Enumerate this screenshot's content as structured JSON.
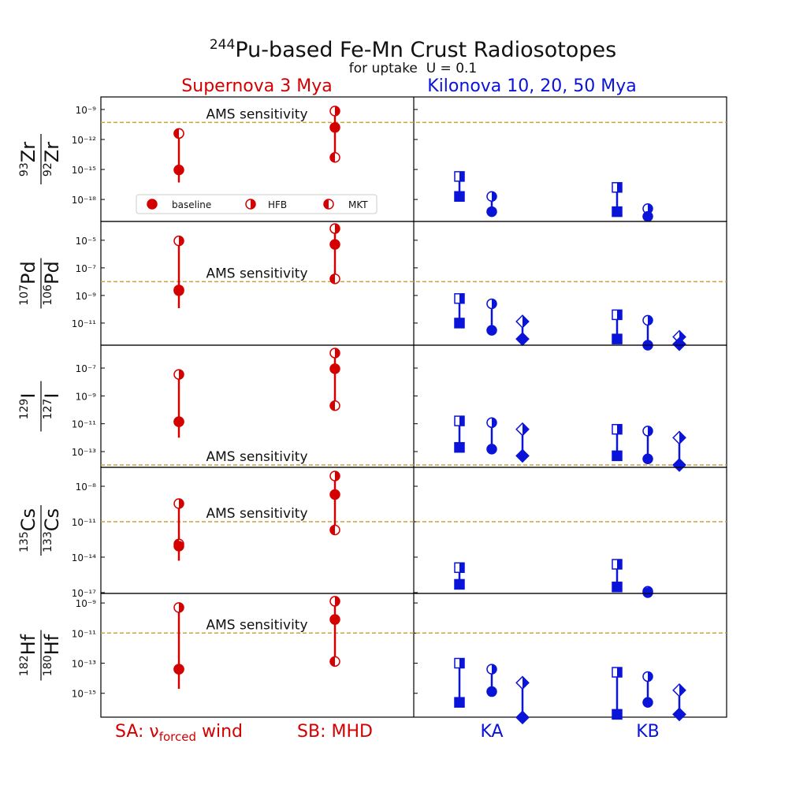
{
  "chart_data": {
    "type": "errorbar",
    "title_sup": "244",
    "title": "Pu-based Fe-Mn Crust Radiosotopes",
    "subtitle": "for uptake  U = 0.1",
    "left_title": "Supernova 3 Mya",
    "right_title": "Kilonova 10, 20, 50 Mya",
    "supernova_color": "#d40000",
    "kilonova_color": "#0a14d8",
    "ams_color": "#c8a046",
    "supernova_labels": [
      [
        "SA: ν",
        "forced",
        " wind"
      ],
      [
        "SB: MHD"
      ]
    ],
    "kilonova_categories": [
      "KA",
      "KB"
    ],
    "legend": [
      "baseline",
      "HFB",
      "MKT"
    ],
    "ams_label": "AMS sensitivity",
    "log_scale": true,
    "panels": [
      {
        "ylabel": [
          "93",
          "Zr",
          "92",
          "Zr"
        ],
        "ylim": [
          6.3e-21,
          1.8e-08
        ],
        "yticks": [
          {
            "value": 1e-09,
            "label": "10⁻⁹"
          },
          {
            "value": 1e-12,
            "label": "10⁻¹²"
          },
          {
            "value": 1e-15,
            "label": "10⁻¹⁵"
          },
          {
            "value": 1e-18,
            "label": "10⁻¹⁸"
          }
        ],
        "ams": 5e-11,
        "supernova": [
          {
            "baseline": 9e-16,
            "hfb": 4e-12,
            "mkt": 4e-12,
            "err": [
              5e-17,
              4e-12
            ]
          },
          {
            "baseline": 1.6e-11,
            "hfb": 7e-10,
            "mkt": 1.6e-14,
            "err": [
              1.6e-14,
              7e-10
            ]
          }
        ],
        "kilonova": [
          {
            "lo": [
              2e-18,
              6e-20,
              null
            ],
            "hi": [
              2e-16,
              2e-18,
              null
            ]
          },
          {
            "lo": [
              6e-20,
              2e-20,
              null
            ],
            "hi": [
              1.6e-17,
              1.2e-19,
              null
            ]
          }
        ]
      },
      {
        "ylabel": [
          "107",
          "Pd",
          "106",
          "Pd"
        ],
        "ylim": [
          2.5e-13,
          0.00023
        ],
        "yticks": [
          {
            "value": 1e-05,
            "label": "10⁻⁵"
          },
          {
            "value": 1e-07,
            "label": "10⁻⁷"
          },
          {
            "value": 1e-09,
            "label": "10⁻⁹"
          },
          {
            "value": 1e-11,
            "label": "10⁻¹¹"
          }
        ],
        "ams": 1e-08,
        "supernova": [
          {
            "baseline": 2.2e-09,
            "hfb": 9e-06,
            "mkt": 2.5e-09,
            "err": [
              1.2e-10,
              9e-06
            ]
          },
          {
            "baseline": 5e-06,
            "hfb": 7e-05,
            "mkt": 1.6e-08,
            "err": [
              1.6e-08,
              7e-05
            ]
          }
        ],
        "kilonova": [
          {
            "lo": [
              1e-11,
              3e-12,
              7e-13
            ],
            "hi": [
              6e-10,
              2.5e-10,
              1.3e-11
            ]
          },
          {
            "lo": [
              7e-13,
              2.5e-13,
              3e-13
            ],
            "hi": [
              4e-11,
              1.6e-11,
              1e-12
            ]
          }
        ]
      },
      {
        "ylabel": [
          "129",
          "I",
          "127",
          "I"
        ],
        "ylim": [
          7.4e-15,
          4.4e-06
        ],
        "yticks": [
          {
            "value": 1e-07,
            "label": "10⁻⁷"
          },
          {
            "value": 1e-09,
            "label": "10⁻⁹"
          },
          {
            "value": 1e-11,
            "label": "10⁻¹¹"
          },
          {
            "value": 1e-13,
            "label": "10⁻¹³"
          }
        ],
        "ams": 1.1e-14,
        "supernova": [
          {
            "baseline": 1.4e-11,
            "hfb": 3.5e-08,
            "mkt": 1.4e-11,
            "err": [
              1e-12,
              3.5e-08
            ]
          },
          {
            "baseline": 9e-08,
            "hfb": 1.2e-06,
            "mkt": 2e-10,
            "err": [
              2e-10,
              1.2e-06
            ]
          }
        ],
        "kilonova": [
          {
            "lo": [
              2e-13,
              1.5e-13,
              5e-14
            ],
            "hi": [
              1.6e-11,
              1.2e-11,
              4e-12
            ]
          },
          {
            "lo": [
              5e-14,
              3e-14,
              1.1e-14
            ],
            "hi": [
              4e-12,
              3e-12,
              1e-12
            ]
          }
        ]
      },
      {
        "ylabel": [
          "135",
          "Cs",
          "133",
          "Cs"
        ],
        "ylim": [
          8.5e-18,
          4e-07
        ],
        "yticks": [
          {
            "value": 1e-08,
            "label": "10⁻⁸"
          },
          {
            "value": 1e-11,
            "label": "10⁻¹¹"
          },
          {
            "value": 1e-14,
            "label": "10⁻¹⁴"
          },
          {
            "value": 1e-17,
            "label": "10⁻¹⁷"
          }
        ],
        "ams": 1e-11,
        "supernova": [
          {
            "baseline": 8.5e-14,
            "hfb": 3.4e-10,
            "mkt": 1.3e-13,
            "err": [
              5e-15,
              3.4e-10
            ]
          },
          {
            "baseline": 2e-09,
            "hfb": 7.4e-08,
            "mkt": 2e-12,
            "err": [
              2e-12,
              7.4e-08
            ]
          }
        ],
        "kilonova": [
          {
            "lo": [
              5e-17,
              null,
              null
            ],
            "hi": [
              1.3e-15,
              null,
              null
            ]
          },
          {
            "lo": [
              3e-17,
              1e-17,
              null
            ],
            "hi": [
              2.5e-15,
              1.3e-17,
              null
            ]
          }
        ]
      },
      {
        "ylabel": [
          "182",
          "Hf",
          "180",
          "Hf"
        ],
        "ylim": [
          2.6e-17,
          4.3e-09
        ],
        "yticks": [
          {
            "value": 1e-09,
            "label": "10⁻⁹"
          },
          {
            "value": 1e-11,
            "label": "10⁻¹¹"
          },
          {
            "value": 1e-13,
            "label": "10⁻¹³"
          },
          {
            "value": 1e-15,
            "label": "10⁻¹⁵"
          }
        ],
        "ams": 1e-11,
        "supernova": [
          {
            "baseline": 4e-14,
            "hfb": 5e-10,
            "mkt": 4e-14,
            "err": [
              2e-15,
              5e-10
            ]
          },
          {
            "baseline": 8e-11,
            "hfb": 1.3e-09,
            "mkt": 1.3e-13,
            "err": [
              1.3e-13,
              1.3e-09
            ]
          }
        ],
        "kilonova": [
          {
            "lo": [
              2.5e-16,
              1.3e-15,
              2.5e-17
            ],
            "hi": [
              1e-13,
              4e-14,
              5e-15
            ]
          },
          {
            "lo": [
              4e-17,
              2.5e-16,
              4e-17
            ],
            "hi": [
              2.5e-14,
              1.3e-14,
              1.6e-15
            ]
          }
        ]
      }
    ]
  }
}
